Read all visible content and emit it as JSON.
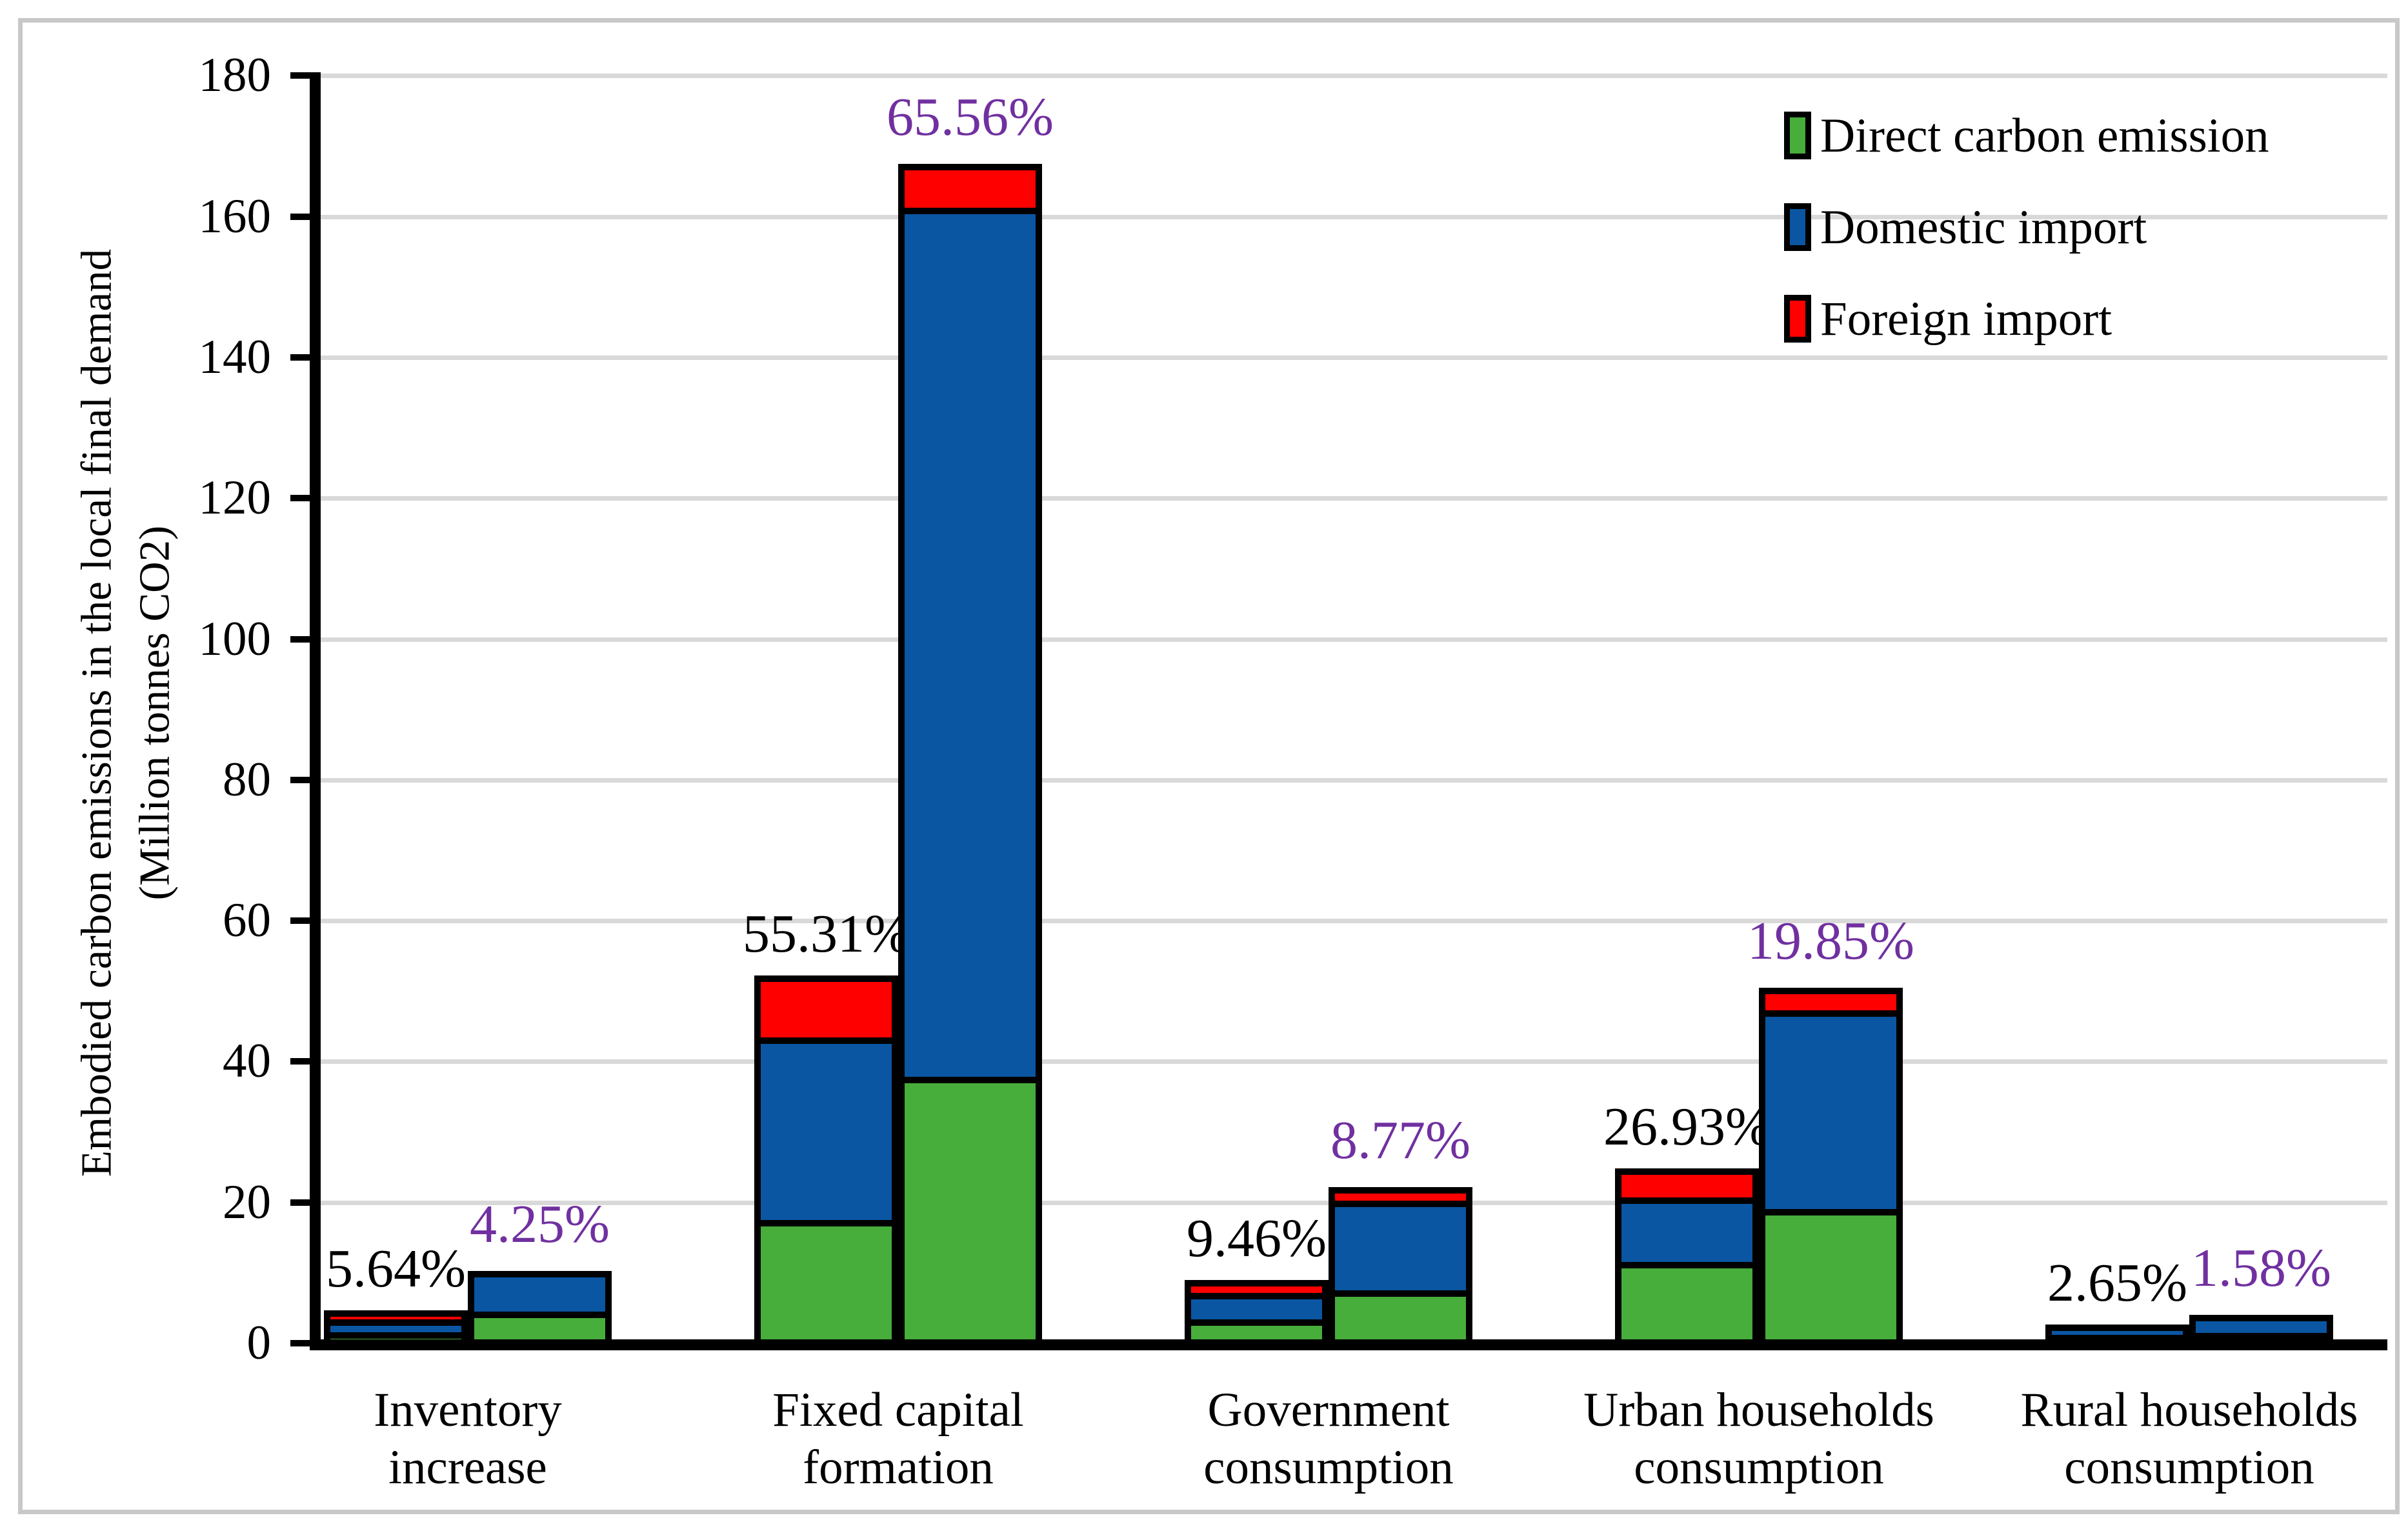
{
  "figure": {
    "y_axis_title_line1": "Embodied carbon emissions in the local final demand",
    "y_axis_title_line2": "(Million tonnes CO2)"
  },
  "colors": {
    "direct": "#47AD3B",
    "domestic": "#0A56A2",
    "foreign": "#FE0000",
    "label_black": "#000000",
    "label_purple": "#7030A0",
    "gridline": "#D9D9D9",
    "frame": "#C8C8C8",
    "axis": "#000000"
  },
  "chart_data": {
    "type": "bar",
    "stacked": true,
    "title": "",
    "ylabel": "Embodied carbon emissions in the local final demand (Million tonnes CO2)",
    "xlabel": "",
    "ylim": [
      0,
      180
    ],
    "ytick_step": 20,
    "ytick_labels": [
      "0",
      "20",
      "40",
      "60",
      "80",
      "100",
      "120",
      "140",
      "160",
      "180"
    ],
    "grid": true,
    "legend_position": "top-right",
    "legend": [
      {
        "label": "Direct carbon emission",
        "series_key": "direct"
      },
      {
        "label": "Domestic import",
        "series_key": "domestic"
      },
      {
        "label": "Foreign import",
        "series_key": "foreign"
      }
    ],
    "units": "Million tonnes CO2",
    "categories": [
      "Inventory increase",
      "Fixed capital formation",
      "Government consumption",
      "Urban households consumption",
      "Rural households consumption"
    ],
    "groups": [
      {
        "category_lines": [
          "Inventory",
          "increase"
        ],
        "bars": [
          {
            "position": "left",
            "direct_carbon_emission": 1.5,
            "domestic_import": 2.2,
            "foreign_import": 1.0,
            "total": 4.7,
            "share_label": "5.64%",
            "share_label_color": "#000000"
          },
          {
            "position": "right",
            "direct_carbon_emission": 4.4,
            "domestic_import": 5.9,
            "foreign_import": 0.0,
            "total": 10.3,
            "share_label": "4.25%",
            "share_label_color": "#7030A0"
          }
        ]
      },
      {
        "category_lines": [
          "Fixed capital",
          "formation"
        ],
        "bars": [
          {
            "position": "left",
            "direct_carbon_emission": 17.5,
            "domestic_import": 26.4,
            "foreign_import": 8.3,
            "total": 52.2,
            "share_label": "55.31%",
            "share_label_color": "#000000"
          },
          {
            "position": "right",
            "direct_carbon_emission": 37.5,
            "domestic_import": 124.6,
            "foreign_import": 5.4,
            "total": 167.5,
            "share_label": "65.56%",
            "share_label_color": "#7030A0"
          }
        ]
      },
      {
        "category_lines": [
          "Government",
          "consumption"
        ],
        "bars": [
          {
            "position": "left",
            "direct_carbon_emission": 3.6,
            "domestic_import": 4.0,
            "foreign_import": 1.4,
            "total": 9.0,
            "share_label": "9.46%",
            "share_label_color": "#000000"
          },
          {
            "position": "right",
            "direct_carbon_emission": 7.5,
            "domestic_import": 13.5,
            "foreign_import": 1.2,
            "total": 22.2,
            "share_label": "8.77%",
            "share_label_color": "#7030A0"
          }
        ]
      },
      {
        "category_lines": [
          "Urban households",
          "consumption"
        ],
        "bars": [
          {
            "position": "left",
            "direct_carbon_emission": 12.0,
            "domestic_import": 9.2,
            "foreign_import": 3.6,
            "total": 24.8,
            "share_label": "26.93%",
            "share_label_color": "#000000"
          },
          {
            "position": "right",
            "direct_carbon_emission": 19.2,
            "domestic_import": 28.9,
            "foreign_import": 2.4,
            "total": 50.5,
            "share_label": "19.85%",
            "share_label_color": "#7030A0"
          }
        ]
      },
      {
        "category_lines": [
          "Rural households",
          "consumption"
        ],
        "bars": [
          {
            "position": "left",
            "direct_carbon_emission": 0.8,
            "domestic_import": 1.9,
            "foreign_import": 0.0,
            "total": 2.7,
            "share_label": "2.65%",
            "share_label_color": "#000000"
          },
          {
            "position": "right",
            "direct_carbon_emission": 1.0,
            "domestic_import": 3.0,
            "foreign_import": 0.0,
            "total": 4.0,
            "share_label": "1.58%",
            "share_label_color": "#7030A0"
          }
        ]
      }
    ]
  }
}
